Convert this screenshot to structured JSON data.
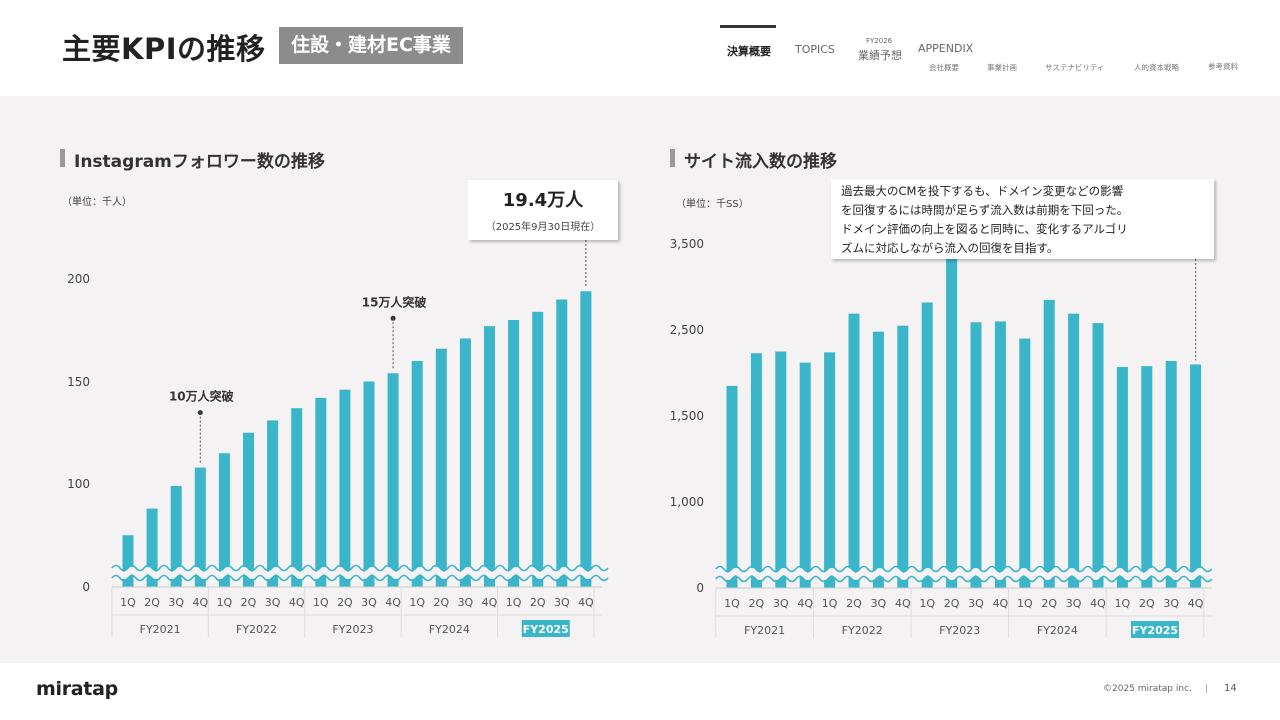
{
  "header": {
    "title": "主要KPIの推移",
    "segment": "住設・建材EC事業",
    "nav": [
      {
        "label": "決算概要",
        "active": true
      },
      {
        "label": "TOPICS"
      },
      {
        "label_small": "FY2026",
        "label": "業績予想"
      },
      {
        "label": "APPENDIX"
      }
    ],
    "subnav": [
      "会社概要",
      "事業計画",
      "サステナビリティ",
      "人的資本戦略",
      "参考資料"
    ]
  },
  "charts": {
    "left": {
      "section_title": "Instagramフォロワー数の推移",
      "unit": "（単位：千人）",
      "callout_value": "19.4万人",
      "callout_date": "（2025年9月30日現在）",
      "annotations": [
        {
          "label": "10万人突破",
          "index": 3
        },
        {
          "label": "15万人突破",
          "index": 11
        }
      ]
    },
    "right": {
      "section_title": "サイト流入数の推移",
      "unit": "（単位：千SS）",
      "note": [
        "過去最大のCMを投下するも、ドメイン変更などの影響",
        "を回復するには時間が足らず流入数は前期を下回った。",
        "ドメイン評価の向上を図ると同時に、変化するアルゴリ",
        "ズムに対応しながら流入の回復を目指す。"
      ]
    }
  },
  "chart_data": [
    {
      "type": "bar",
      "title": "Instagramフォロワー数の推移",
      "ylabel": "（単位：千人）",
      "axis_break": true,
      "yticks": [
        "0",
        "100",
        "150",
        "200"
      ],
      "quarters": [
        "1Q",
        "2Q",
        "3Q",
        "4Q",
        "1Q",
        "2Q",
        "3Q",
        "4Q",
        "1Q",
        "2Q",
        "3Q",
        "4Q",
        "1Q",
        "2Q",
        "3Q",
        "4Q",
        "1Q",
        "2Q",
        "3Q",
        "4Q"
      ],
      "fiscal_years": [
        "FY2021",
        "FY2022",
        "FY2023",
        "FY2024",
        "FY2025"
      ],
      "highlight_year": "FY2025",
      "values": [
        75,
        88,
        99,
        108,
        115,
        125,
        131,
        137,
        142,
        146,
        150,
        154,
        160,
        166,
        171,
        177,
        180,
        184,
        190,
        194
      ],
      "bar_color": "#3ab5c9"
    },
    {
      "type": "bar",
      "title": "サイト流入数の推移",
      "ylabel": "（単位：千SS）",
      "axis_break": true,
      "yticks": [
        "0",
        "1,000",
        "1,500",
        "2,500",
        "3,500"
      ],
      "quarters": [
        "1Q",
        "2Q",
        "3Q",
        "4Q",
        "1Q",
        "2Q",
        "3Q",
        "4Q",
        "1Q",
        "2Q",
        "3Q",
        "4Q",
        "1Q",
        "2Q",
        "3Q",
        "4Q",
        "1Q",
        "2Q",
        "3Q",
        "4Q"
      ],
      "fiscal_years": [
        "FY2021",
        "FY2022",
        "FY2023",
        "FY2024",
        "FY2025"
      ],
      "highlight_year": "FY2025",
      "values": [
        1850,
        2230,
        2250,
        2120,
        2240,
        2690,
        2480,
        2550,
        2820,
        3420,
        2590,
        2600,
        2400,
        2850,
        2690,
        2580,
        2070,
        2080,
        2140,
        2100
      ],
      "bar_color": "#3ab5c9"
    }
  ],
  "footer": {
    "logo": "miratap",
    "copyright": "©2025 miratap inc.",
    "separator": "|",
    "page": "14"
  }
}
